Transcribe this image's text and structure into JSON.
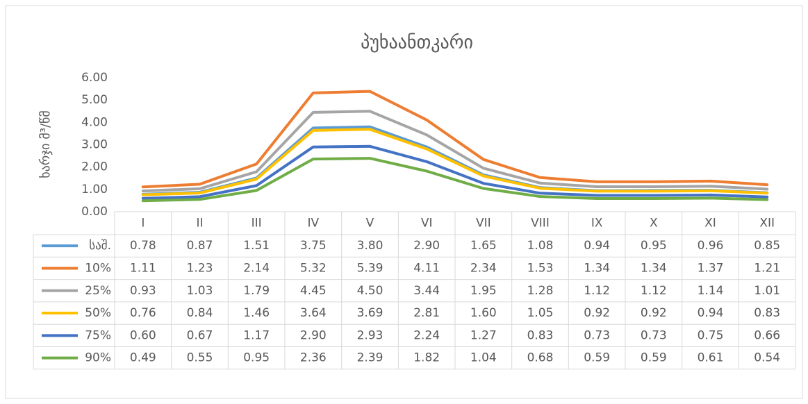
{
  "chart_data": {
    "type": "line",
    "title": "პუხაანთკარი",
    "y_label": "ხარჯი მ³/წმ",
    "categories": [
      "I",
      "II",
      "III",
      "IV",
      "V",
      "VI",
      "VII",
      "VIII",
      "IX",
      "X",
      "XI",
      "XII"
    ],
    "ylim": [
      0,
      6
    ],
    "yticks": [
      {
        "value": 0,
        "label": "0.00"
      },
      {
        "value": 1,
        "label": "1.00"
      },
      {
        "value": 2,
        "label": "2.00"
      },
      {
        "value": 3,
        "label": "3.00"
      },
      {
        "value": 4,
        "label": "4.00"
      },
      {
        "value": 5,
        "label": "5.00"
      },
      {
        "value": 6,
        "label": "6.00"
      }
    ],
    "grid": false,
    "series": [
      {
        "name": "საშ.",
        "color": "#5b9bd5",
        "values": [
          0.78,
          0.87,
          1.51,
          3.75,
          3.8,
          2.9,
          1.65,
          1.08,
          0.94,
          0.95,
          0.96,
          0.85
        ],
        "value_labels": [
          "0.78",
          "0.87",
          "1.51",
          "3.75",
          "3.80",
          "2.90",
          "1.65",
          "1.08",
          "0.94",
          "0.95",
          "0.96",
          "0.85"
        ]
      },
      {
        "name": "10%",
        "color": "#ed7d31",
        "values": [
          1.11,
          1.23,
          2.14,
          5.32,
          5.39,
          4.11,
          2.34,
          1.53,
          1.34,
          1.34,
          1.37,
          1.21
        ],
        "value_labels": [
          "1.11",
          "1.23",
          "2.14",
          "5.32",
          "5.39",
          "4.11",
          "2.34",
          "1.53",
          "1.34",
          "1.34",
          "1.37",
          "1.21"
        ]
      },
      {
        "name": "25%",
        "color": "#a5a5a5",
        "values": [
          0.93,
          1.03,
          1.79,
          4.45,
          4.5,
          3.44,
          1.95,
          1.28,
          1.12,
          1.12,
          1.14,
          1.01
        ],
        "value_labels": [
          "0.93",
          "1.03",
          "1.79",
          "4.45",
          "4.50",
          "3.44",
          "1.95",
          "1.28",
          "1.12",
          "1.12",
          "1.14",
          "1.01"
        ]
      },
      {
        "name": "50%",
        "color": "#ffc000",
        "values": [
          0.76,
          0.84,
          1.46,
          3.64,
          3.69,
          2.81,
          1.6,
          1.05,
          0.92,
          0.92,
          0.94,
          0.83
        ],
        "value_labels": [
          "0.76",
          "0.84",
          "1.46",
          "3.64",
          "3.69",
          "2.81",
          "1.60",
          "1.05",
          "0.92",
          "0.92",
          "0.94",
          "0.83"
        ]
      },
      {
        "name": "75%",
        "color": "#4472c4",
        "values": [
          0.6,
          0.67,
          1.17,
          2.9,
          2.93,
          2.24,
          1.27,
          0.83,
          0.73,
          0.73,
          0.75,
          0.66
        ],
        "value_labels": [
          "0.60",
          "0.67",
          "1.17",
          "2.90",
          "2.93",
          "2.24",
          "1.27",
          "0.83",
          "0.73",
          "0.73",
          "0.75",
          "0.66"
        ]
      },
      {
        "name": "90%",
        "color": "#70ad47",
        "values": [
          0.49,
          0.55,
          0.95,
          2.36,
          2.39,
          1.82,
          1.04,
          0.68,
          0.59,
          0.59,
          0.61,
          0.54
        ],
        "value_labels": [
          "0.49",
          "0.55",
          "0.95",
          "2.36",
          "2.39",
          "1.82",
          "1.04",
          "0.68",
          "0.59",
          "0.59",
          "0.61",
          "0.54"
        ]
      }
    ]
  }
}
